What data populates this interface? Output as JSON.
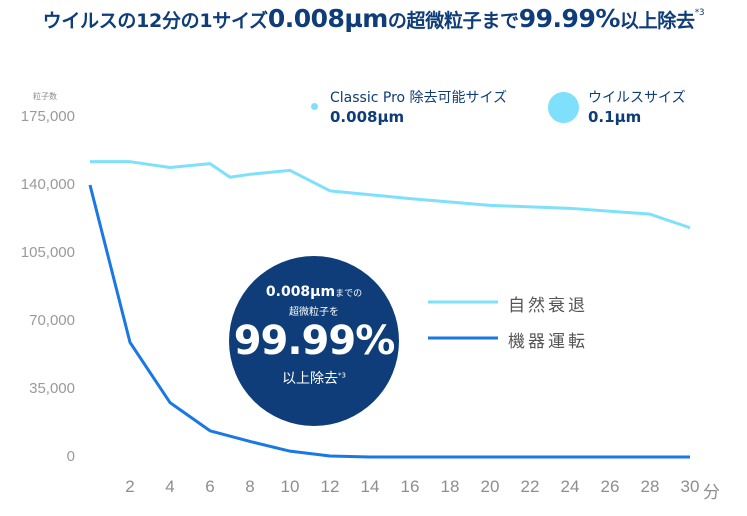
{
  "title": {
    "prefix": "ウイルスの12分の1サイズ",
    "size": "0.008µm",
    "middle": "の超微粒子まで",
    "percent": "99.99%",
    "suffix": "以上除去",
    "note": "*3"
  },
  "legend_sizes": [
    {
      "label": "Classic Pro 除去可能サイズ",
      "value": "0.008µm"
    },
    {
      "label": "ウイルスサイズ",
      "value": "0.1µm"
    }
  ],
  "badge": {
    "size": "0.008µm",
    "size_suffix": "までの",
    "line2": "超微粒子を",
    "percent": "99.99%",
    "line3": "以上除去",
    "note": "*3"
  },
  "colors": {
    "title": "#0e3d79",
    "natural_decay": "#7ee0fb",
    "device_running": "#1a77e6",
    "badge": "#0e3d79"
  },
  "chart_data": {
    "type": "line",
    "ylabel": "粒子数",
    "xunit": "分",
    "ylim": [
      0,
      175000
    ],
    "yticks": [
      "0",
      "35,000",
      "70,000",
      "105,000",
      "140,000",
      "175,000"
    ],
    "xticks": [
      "2",
      "4",
      "6",
      "8",
      "10",
      "12",
      "14",
      "16",
      "18",
      "20",
      "22",
      "24",
      "26",
      "28",
      "30"
    ],
    "xlim": [
      0,
      30
    ],
    "grid": false,
    "series": [
      {
        "name": "自然衰退",
        "x": [
          0,
          2,
          4,
          6,
          7,
          8,
          10,
          12,
          16,
          20,
          24,
          28,
          30
        ],
        "y": [
          152000,
          152000,
          149000,
          151000,
          144000,
          145500,
          147500,
          137000,
          133000,
          129500,
          128000,
          125000,
          118000
        ]
      },
      {
        "name": "機器運転",
        "x": [
          0,
          2,
          4,
          6,
          8,
          10,
          12,
          14,
          20,
          30
        ],
        "y": [
          140000,
          59000,
          28000,
          13500,
          8000,
          3000,
          500,
          0,
          0,
          0
        ]
      }
    ]
  }
}
